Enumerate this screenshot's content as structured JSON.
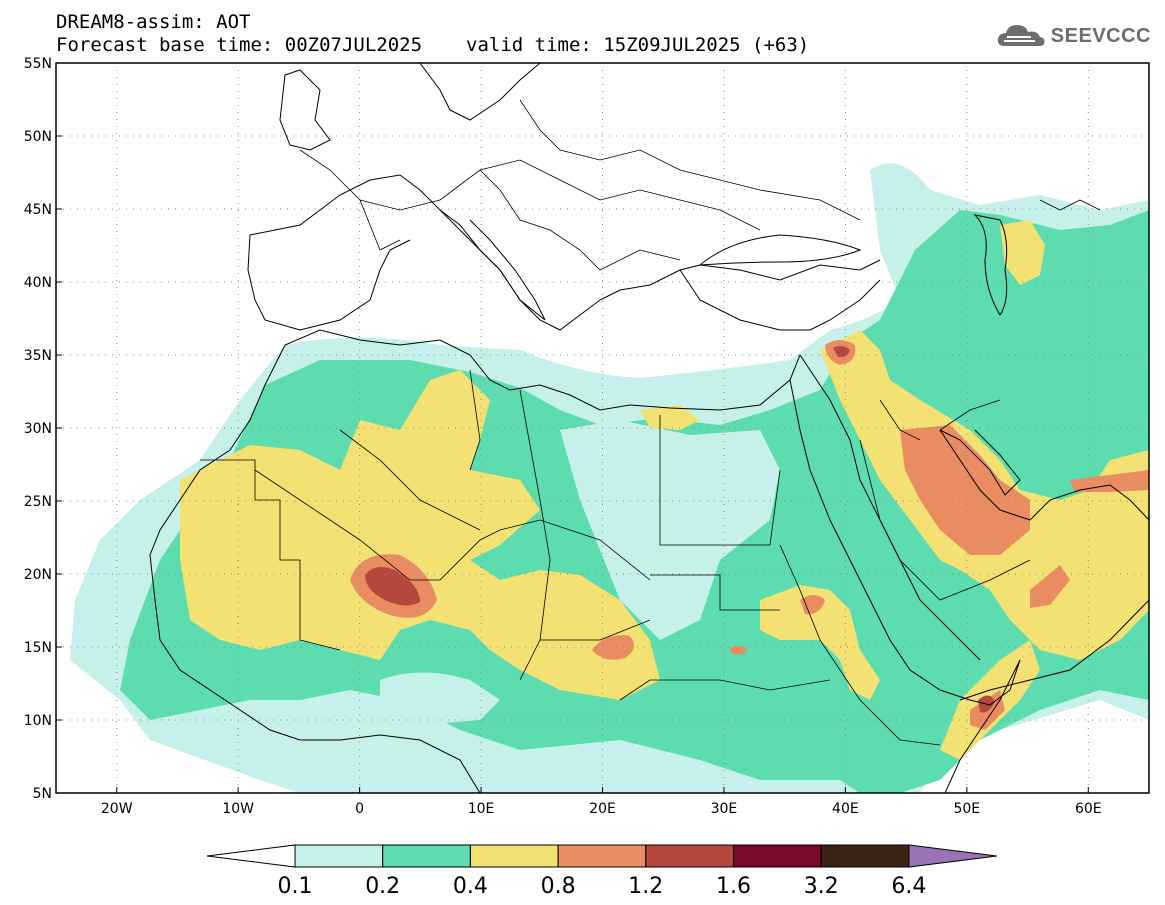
{
  "header": {
    "line1": "DREAM8-assim: AOT",
    "base_label": "Forecast base time: 00Z07JUL2025",
    "valid_label": "valid time: 15Z09JUL2025 (+63)"
  },
  "logo": {
    "text": "SEEVCCC",
    "icon": "cloud-icon"
  },
  "map": {
    "variable": "AOT",
    "lon_range": [
      -25,
      65
    ],
    "lat_range": [
      5,
      55
    ],
    "lat_ticks": [
      "55N",
      "50N",
      "45N",
      "40N",
      "35N",
      "30N",
      "25N",
      "20N",
      "15N",
      "10N",
      "5N"
    ],
    "lon_ticks": [
      "20W",
      "10W",
      "0",
      "10E",
      "20E",
      "30E",
      "40E",
      "50E",
      "60E"
    ]
  },
  "legend": {
    "labels": [
      "0.1",
      "0.2",
      "0.4",
      "0.8",
      "1.2",
      "1.6",
      "3.2",
      "6.4"
    ],
    "colors": [
      "#ffffff",
      "#c6f0ea",
      "#5ddcaf",
      "#f3e173",
      "#ea8c62",
      "#b4483c",
      "#7a0a2a",
      "#3b2416",
      "#9a73b4"
    ],
    "levels": [
      0.1,
      0.2,
      0.4,
      0.8,
      1.2,
      1.6,
      3.2,
      6.4
    ]
  }
}
